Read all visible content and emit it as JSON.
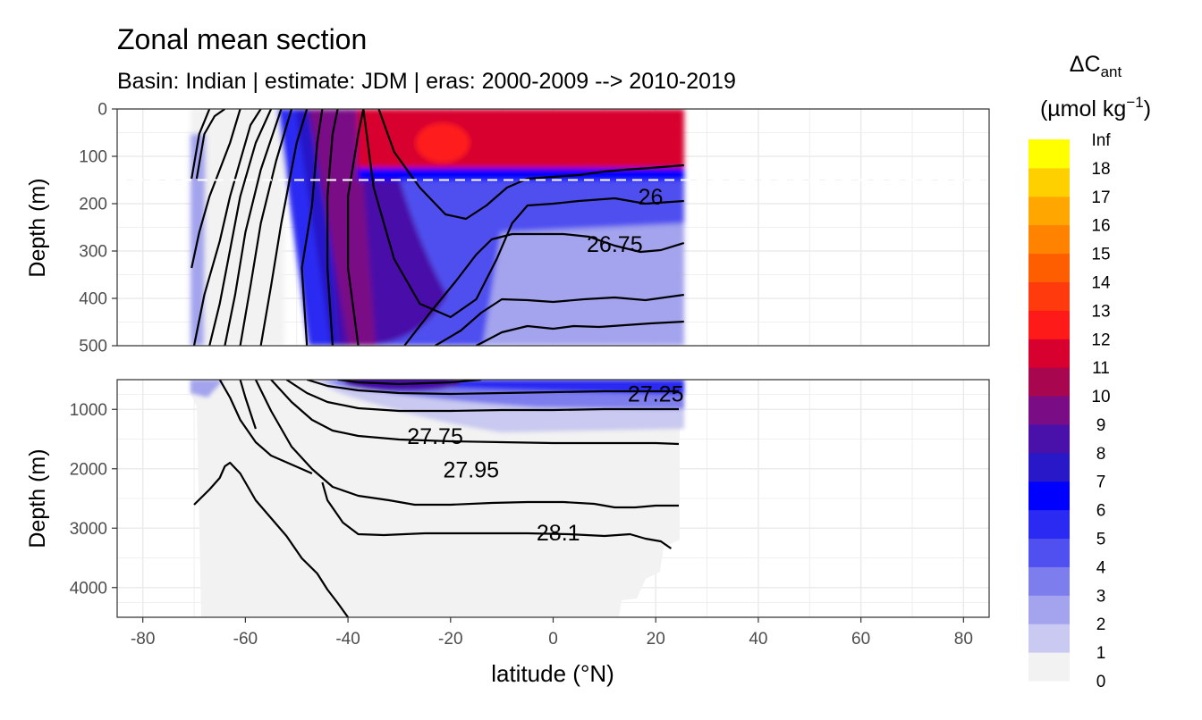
{
  "chart_data": {
    "type": "heatmap",
    "title": "Zonal mean section",
    "subtitle": "Basin: Indian | estimate: JDM  | eras: 2000-2009 --> 2010-2019",
    "xlabel": "latitude (°N)",
    "x_ticks": [
      "-80",
      "-60",
      "-40",
      "-20",
      "0",
      "20",
      "40",
      "60",
      "80"
    ],
    "xlim": [
      -85,
      85
    ],
    "panels": [
      {
        "name": "upper",
        "ylabel": "Depth (m)",
        "ylim": [
          0,
          500
        ],
        "y_reversed": true,
        "y_ticks": [
          "0",
          "100",
          "200",
          "300",
          "400",
          "500"
        ],
        "reference_depth": 150
      },
      {
        "name": "lower",
        "ylabel": "Depth (m)",
        "ylim": [
          500,
          4500
        ],
        "y_reversed": true,
        "y_ticks": [
          "1000",
          "2000",
          "3000",
          "4000"
        ]
      }
    ],
    "legend": {
      "title_main": "ΔC",
      "title_sub": "ant",
      "unit_main": "(µmol kg",
      "unit_sup": "−1",
      "unit_close": ")",
      "placement": "right",
      "bins": [
        {
          "label": "0",
          "color": "#f2f2f2"
        },
        {
          "label": "1",
          "color": "#c9c9f1"
        },
        {
          "label": "2",
          "color": "#a3a3ee"
        },
        {
          "label": "3",
          "color": "#7d7dee"
        },
        {
          "label": "4",
          "color": "#5050f0"
        },
        {
          "label": "5",
          "color": "#2a2af3"
        },
        {
          "label": "6",
          "color": "#0000ff"
        },
        {
          "label": "7",
          "color": "#2818c8"
        },
        {
          "label": "8",
          "color": "#4a10aa"
        },
        {
          "label": "9",
          "color": "#7a0d86"
        },
        {
          "label": "10",
          "color": "#a8064f"
        },
        {
          "label": "11",
          "color": "#d8002e"
        },
        {
          "label": "12",
          "color": "#ff1a1a"
        },
        {
          "label": "13",
          "color": "#ff3a0d"
        },
        {
          "label": "14",
          "color": "#ff5e00"
        },
        {
          "label": "15",
          "color": "#ff8200"
        },
        {
          "label": "16",
          "color": "#ffa600"
        },
        {
          "label": "17",
          "color": "#ffd000"
        },
        {
          "label": "18",
          "color": "#ffff00"
        },
        {
          "label": "Inf",
          "color": null
        }
      ]
    },
    "isopycnal_labels": [
      {
        "text": "26",
        "lat": 19,
        "depth": 185
      },
      {
        "text": "26.75",
        "lat": 12,
        "depth": 285
      },
      {
        "text": "27.25",
        "lat": 20,
        "depth": 730
      },
      {
        "text": "27.75",
        "lat": -23,
        "depth": 1450
      },
      {
        "text": "27.95",
        "lat": -16,
        "depth": 2010
      },
      {
        "text": "28.1",
        "lat": 1,
        "depth": 3070
      }
    ],
    "data_extent": {
      "lat_min": -71,
      "lat_max": 25.5
    },
    "grid": true
  }
}
